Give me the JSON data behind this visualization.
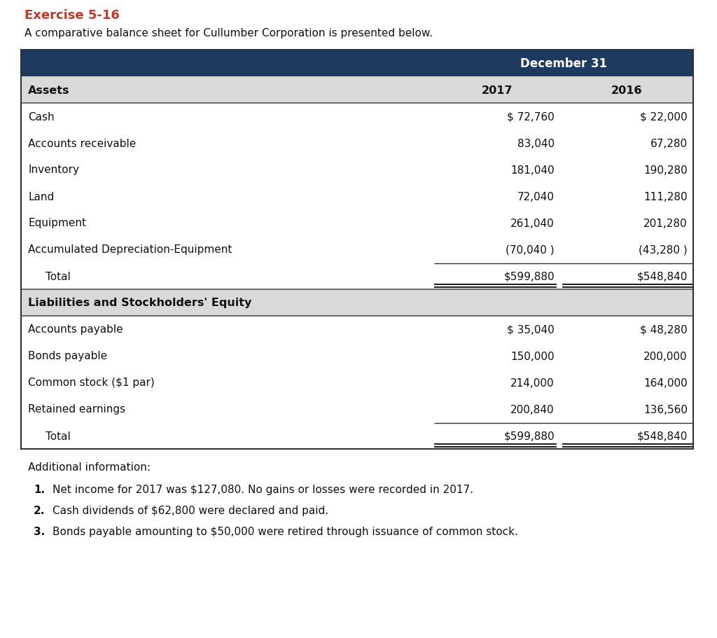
{
  "title_exercise": "Exercise 5-16",
  "subtitle": "A comparative balance sheet for Cullumber Corporation is presented below.",
  "header_bg": "#1e3a5f",
  "header_text_color": "#ffffff",
  "subheader_bg": "#d9d9d9",
  "exercise_color": "#c0392b",
  "col_header": "December 31",
  "col_years": [
    "2017",
    "2016"
  ],
  "assets_label": "Assets",
  "assets_rows": [
    [
      "Cash",
      "$ 72,760",
      "$ 22,000"
    ],
    [
      "Accounts receivable",
      "83,040",
      "67,280"
    ],
    [
      "Inventory",
      "181,040",
      "190,280"
    ],
    [
      "Land",
      "72,040",
      "111,280"
    ],
    [
      "Equipment",
      "261,040",
      "201,280"
    ],
    [
      "Accumulated Depreciation-Equipment",
      "(70,040 )",
      "(43,280 )"
    ],
    [
      "  Total",
      "$599,880",
      "$548,840"
    ]
  ],
  "liabilities_label": "Liabilities and Stockholders' Equity",
  "liabilities_rows": [
    [
      "Accounts payable",
      "$ 35,040",
      "$ 48,280"
    ],
    [
      "Bonds payable",
      "150,000",
      "200,000"
    ],
    [
      "Common stock ($1 par)",
      "214,000",
      "164,000"
    ],
    [
      "Retained earnings",
      "200,840",
      "136,560"
    ],
    [
      "  Total",
      "$599,880",
      "$548,840"
    ]
  ],
  "additional_info_label": "Additional information:",
  "additional_items": [
    "Net income for 2017 was $127,080. No gains or losses were recorded in 2017.",
    "Cash dividends of $62,800 were declared and paid.",
    "Bonds payable amounting to $50,000 were retired through issuance of common stock."
  ],
  "background_color": "#ffffff"
}
